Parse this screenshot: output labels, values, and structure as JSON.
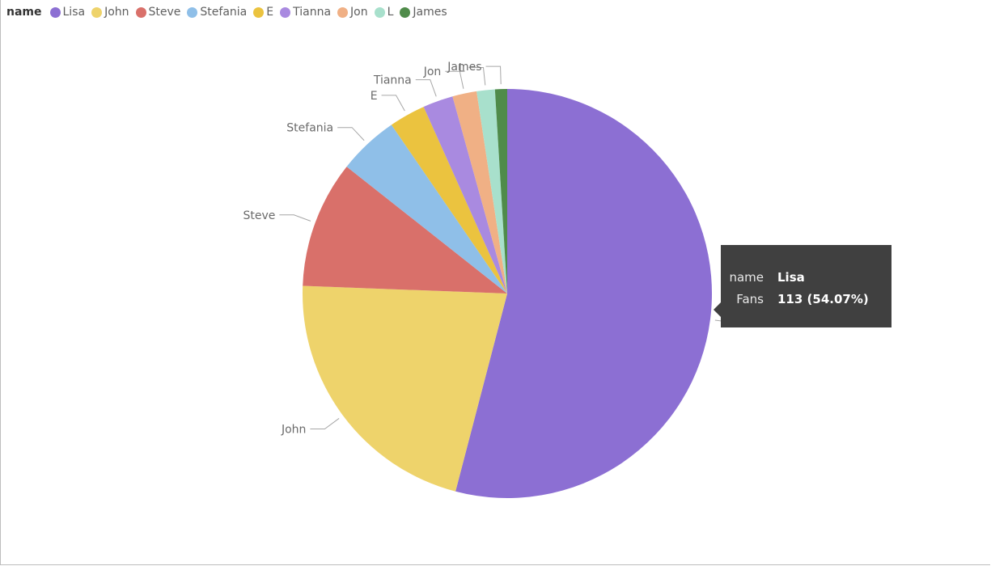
{
  "legend": {
    "title": "name",
    "items": [
      {
        "label": "Lisa",
        "color": "#8c6fd3"
      },
      {
        "label": "John",
        "color": "#eed36b"
      },
      {
        "label": "Steve",
        "color": "#d9706a"
      },
      {
        "label": "Stefania",
        "color": "#8fbfe8"
      },
      {
        "label": "E",
        "color": "#ebc33f"
      },
      {
        "label": "Tianna",
        "color": "#a98ae0"
      },
      {
        "label": "Jon",
        "color": "#f0b085"
      },
      {
        "label": "L",
        "color": "#a8e0cc"
      },
      {
        "label": "James",
        "color": "#4f8b4a"
      }
    ]
  },
  "chart_data": {
    "type": "pie",
    "legend_title": "name",
    "value_field": "Fans",
    "categories": [
      "Lisa",
      "John",
      "Steve",
      "Stefania",
      "E",
      "Tianna",
      "Jon",
      "L",
      "James"
    ],
    "values": [
      113,
      45,
      21,
      10,
      6,
      5,
      4,
      3,
      2
    ],
    "colors": [
      "#8c6fd3",
      "#eed36b",
      "#d9706a",
      "#8fbfe8",
      "#ebc33f",
      "#a98ae0",
      "#f0b085",
      "#a8e0cc",
      "#4f8b4a"
    ],
    "legend_position": "top-left"
  },
  "tooltip": {
    "name_key": "name",
    "name_value": "Lisa",
    "fans_key": "Fans",
    "fans_value": "113 (54.07%)"
  }
}
